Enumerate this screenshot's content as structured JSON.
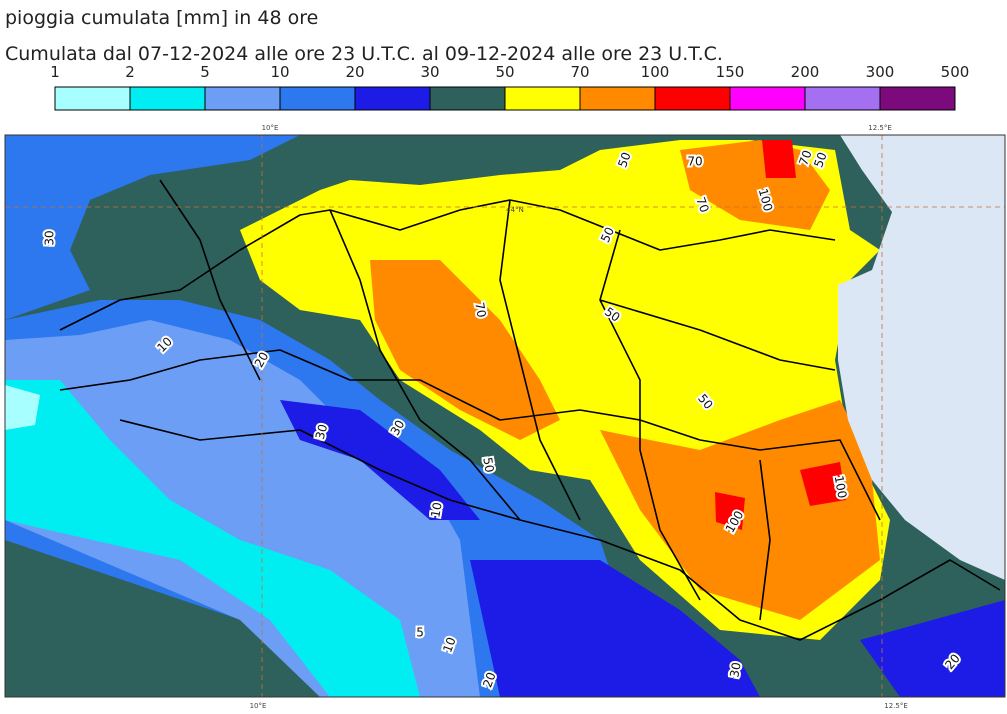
{
  "header": {
    "title": "pioggia cumulata [mm] in 48 ore",
    "subtitle": "Cumulata dal 07-12-2024 alle ore 23 U.T.C. al 09-12-2024 alle ore 23 U.T.C."
  },
  "colorbar": {
    "levels": [
      1,
      2,
      5,
      10,
      20,
      30,
      50,
      70,
      100,
      150,
      200,
      300,
      500
    ],
    "colors": [
      "#a8ffff",
      "#00eef2",
      "#6d9ef5",
      "#2d78ee",
      "#1c1ce6",
      "#2e615c",
      "#ffff00",
      "#ff8a00",
      "#ff0000",
      "#ff00ff",
      "#a46ff0",
      "#7d0a7d"
    ]
  },
  "map": {
    "lon_labels": [
      "10°E",
      "12.5°E"
    ],
    "lat_labels": [
      "44°N"
    ],
    "contour_labels": [
      "50",
      "70",
      "70",
      "50",
      "100",
      "70",
      "30",
      "50",
      "70",
      "50",
      "10",
      "20",
      "50",
      "30",
      "30",
      "50",
      "100",
      "10",
      "100",
      "5",
      "10",
      "30",
      "20",
      "20"
    ]
  }
}
